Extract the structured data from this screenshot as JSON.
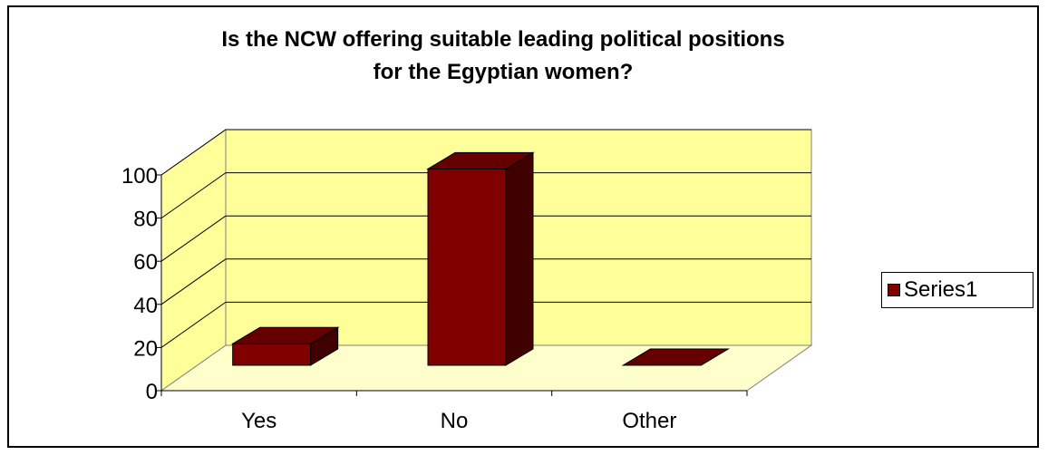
{
  "chart_data": {
    "type": "bar",
    "title_lines": [
      "Is the NCW offering suitable leading political  positions",
      "for the Egyptian women?"
    ],
    "categories": [
      "Yes",
      "No",
      "Other"
    ],
    "series": [
      {
        "name": "Series1",
        "values": [
          10,
          91,
          0
        ],
        "color": "#800000"
      }
    ],
    "y_ticks": [
      "0",
      "20",
      "40",
      "60",
      "80",
      "100"
    ],
    "ylim": [
      0,
      100
    ],
    "grid": true,
    "legend": "right",
    "wall_color": "#ffff99",
    "floor_color": "#ffffcc",
    "bar_front_color": "#800000",
    "bar_top_color": "#660000",
    "bar_side_color": "#400000"
  }
}
